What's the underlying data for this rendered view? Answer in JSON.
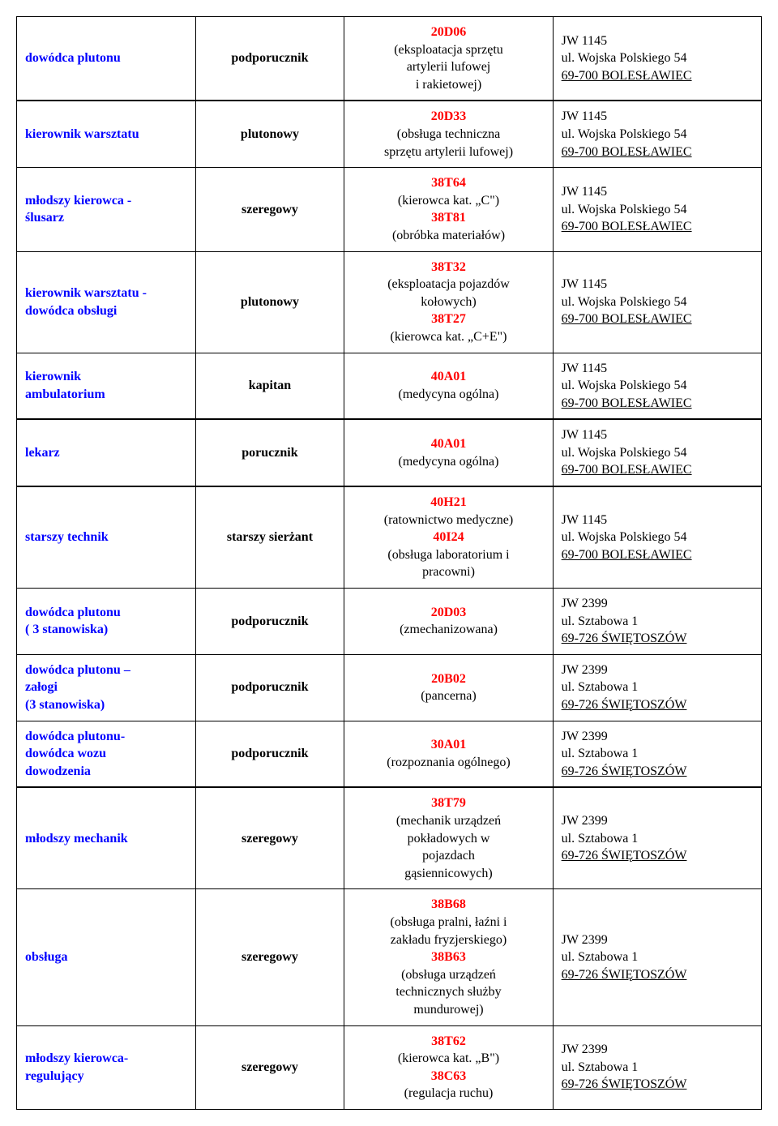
{
  "colors": {
    "blue": "#0000ff",
    "red": "#ff0000",
    "text": "#000000",
    "border": "#000000",
    "bg": "#ffffff"
  },
  "rows": [
    {
      "position": "dowódca plutonu",
      "rank": "podporucznik",
      "spec": [
        [
          "red",
          "20D06"
        ],
        [
          "plain",
          "(eksploatacja sprzętu"
        ],
        [
          "plain",
          "artylerii lufowej"
        ],
        [
          "plain",
          "i rakietowej)"
        ]
      ],
      "unit": [
        [
          "plain",
          "JW 1145"
        ],
        [
          "plain",
          "ul. Wojska Polskiego 54"
        ],
        [
          "plain",
          "69-700 BOLESŁAWIEC"
        ]
      ]
    },
    {
      "position": "kierownik warsztatu",
      "rank": "plutonowy",
      "spec": [
        [
          "red",
          "20D33"
        ],
        [
          "plain",
          "(obsługa techniczna"
        ],
        [
          "plain",
          "sprzętu artylerii  lufowej)"
        ]
      ],
      "unit": [
        [
          "plain",
          "JW 1145"
        ],
        [
          "plain",
          "ul. Wojska Polskiego 54"
        ],
        [
          "plain",
          "69-700 BOLESŁAWIEC"
        ]
      ]
    },
    {
      "position": "młodszy kierowca -\nślusarz",
      "rank": "szeregowy",
      "spec": [
        [
          "red",
          "38T64"
        ],
        [
          "plain",
          "(kierowca kat. „C\")"
        ],
        [
          "red",
          "38T81"
        ],
        [
          "plain",
          "(obróbka materiałów)"
        ]
      ],
      "unit": [
        [
          "plain",
          "JW 1145"
        ],
        [
          "plain",
          "ul. Wojska Polskiego 54"
        ],
        [
          "plain",
          "69-700 BOLESŁAWIEC"
        ]
      ]
    },
    {
      "position": "kierownik warsztatu -\ndowódca obsługi",
      "rank": "plutonowy",
      "spec": [
        [
          "red",
          "38T32"
        ],
        [
          "plain",
          "(eksploatacja  pojazdów"
        ],
        [
          "plain",
          "kołowych)"
        ],
        [
          "red",
          "38T27"
        ],
        [
          "plain",
          "(kierowca kat. „C+E\")"
        ]
      ],
      "unit": [
        [
          "plain",
          "JW 1145"
        ],
        [
          "plain",
          "ul. Wojska Polskiego 54"
        ],
        [
          "plain",
          "69-700 BOLESŁAWIEC"
        ]
      ]
    },
    {
      "position": "kierownik\nambulatorium",
      "rank": "kapitan",
      "spec": [
        [
          "red",
          "40A01"
        ],
        [
          "plain",
          "(medycyna ogólna)"
        ]
      ],
      "unit": [
        [
          "plain",
          "JW 1145"
        ],
        [
          "plain",
          "ul. Wojska Polskiego 54"
        ],
        [
          "plain",
          "69-700 BOLESŁAWIEC"
        ]
      ]
    },
    {
      "position": "lekarz",
      "rank": "porucznik",
      "spec": [
        [
          "red",
          "40A01"
        ],
        [
          "plain",
          "(medycyna ogólna)"
        ]
      ],
      "unit": [
        [
          "plain",
          "JW 1145"
        ],
        [
          "plain",
          "ul. Wojska Polskiego 54"
        ],
        [
          "plain",
          "69-700 BOLESŁAWIEC"
        ]
      ]
    },
    {
      "position": "starszy technik",
      "rank": "starszy sierżant",
      "spec": [
        [
          "red",
          "40H21"
        ],
        [
          "plain",
          "(ratownictwo medyczne)"
        ],
        [
          "red",
          "40I24"
        ],
        [
          "plain",
          "(obsługa laboratorium  i"
        ],
        [
          "plain",
          "pracowni)"
        ]
      ],
      "unit": [
        [
          "plain",
          "JW 1145"
        ],
        [
          "plain",
          "ul. Wojska Polskiego 54"
        ],
        [
          "plain",
          "69-700 BOLESŁAWIEC"
        ]
      ]
    },
    {
      "position": "dowódca plutonu\n( 3 stanowiska)",
      "rank": "podporucznik",
      "spec": [
        [
          "red",
          "20D03"
        ],
        [
          "plain",
          "(zmechanizowana)"
        ]
      ],
      "unit": [
        [
          "plain",
          "JW  2399"
        ],
        [
          "plain",
          "ul. Sztabowa 1"
        ],
        [
          "plain",
          "69-726 ŚWIĘTOSZÓW"
        ]
      ]
    },
    {
      "position": "dowódca plutonu –\nzałogi\n (3 stanowiska)",
      "rank": "podporucznik",
      "spec": [
        [
          "red",
          "20B02"
        ],
        [
          "plain",
          "(pancerna)"
        ]
      ],
      "unit": [
        [
          "plain",
          "JW  2399"
        ],
        [
          "plain",
          "ul. Sztabowa 1"
        ],
        [
          "plain",
          "69-726 ŚWIĘTOSZÓW"
        ]
      ]
    },
    {
      "position": "dowódca plutonu-\ndowódca wozu\ndowodzenia",
      "rank": "podporucznik",
      "spec": [
        [
          "red",
          "30A01"
        ],
        [
          "plain",
          "(rozpoznania ogólnego)"
        ]
      ],
      "unit": [
        [
          "plain",
          "JW  2399"
        ],
        [
          "plain",
          "ul. Sztabowa 1"
        ],
        [
          "plain",
          "69-726 ŚWIĘTOSZÓW"
        ]
      ]
    },
    {
      "position": "młodszy mechanik",
      "rank": "szeregowy",
      "spec": [
        [
          "red",
          "38T79"
        ],
        [
          "plain",
          "(mechanik urządzeń"
        ],
        [
          "plain",
          "pokładowych  w"
        ],
        [
          "plain",
          "pojazdach"
        ],
        [
          "plain",
          "gąsiennicowych)"
        ]
      ],
      "unit": [
        [
          "plain",
          "JW  2399"
        ],
        [
          "plain",
          "ul. Sztabowa 1"
        ],
        [
          "plain",
          "69-726 ŚWIĘTOSZÓW"
        ]
      ]
    },
    {
      "position": "obsługa",
      "rank": "szeregowy",
      "spec": [
        [
          "red",
          "38B68"
        ],
        [
          "plain",
          "(obsługa pralni, łaźni i"
        ],
        [
          "plain",
          "zakładu fryzjerskiego)"
        ],
        [
          "red",
          "38B63"
        ],
        [
          "plain",
          "(obsługa urządzeń"
        ],
        [
          "plain",
          "technicznych służby"
        ],
        [
          "plain",
          "mundurowej)"
        ]
      ],
      "unit": [
        [
          "plain",
          "JW  2399"
        ],
        [
          "plain",
          "ul. Sztabowa 1"
        ],
        [
          "plain",
          "69-726 ŚWIĘTOSZÓW"
        ]
      ]
    },
    {
      "position": "młodszy kierowca-\nregulujący",
      "rank": "szeregowy",
      "spec": [
        [
          "red",
          "38T62"
        ],
        [
          "plain",
          "(kierowca kat. „B\")"
        ],
        [
          "red",
          "38C63"
        ],
        [
          "plain",
          "(regulacja ruchu)"
        ]
      ],
      "unit": [
        [
          "plain",
          "JW  2399"
        ],
        [
          "plain",
          "ul. Sztabowa 1"
        ],
        [
          "plain",
          "69-726 ŚWIĘTOSZÓW"
        ]
      ]
    }
  ],
  "groups": [
    [
      0,
      0
    ],
    [
      1,
      4
    ],
    [
      5,
      5
    ],
    [
      6,
      9
    ],
    [
      10,
      12
    ]
  ]
}
